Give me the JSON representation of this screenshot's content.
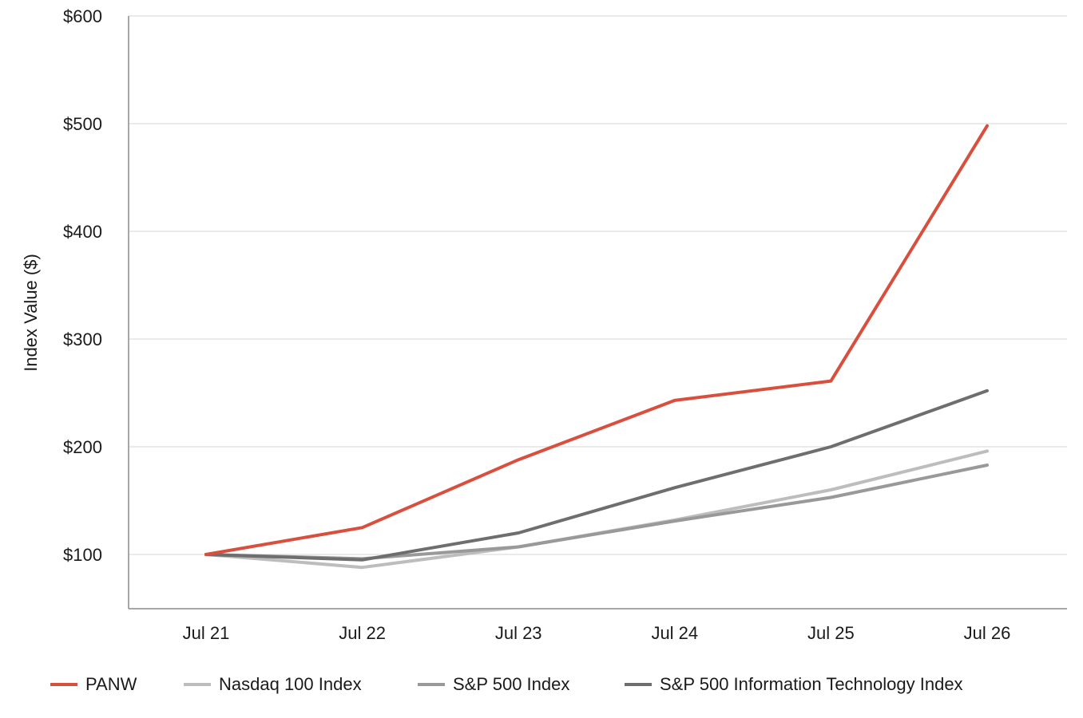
{
  "chart_data": {
    "type": "line",
    "title": "",
    "xlabel": "",
    "ylabel": "Index Value ($)",
    "categories": [
      "Jul 21",
      "Jul 22",
      "Jul 23",
      "Jul 24",
      "Jul 25",
      "Jul 26"
    ],
    "ylim": [
      50,
      600
    ],
    "yticks": [
      100,
      200,
      300,
      400,
      500,
      600
    ],
    "ytick_labels": [
      "$100",
      "$200",
      "$300",
      "$400",
      "$500",
      "$600"
    ],
    "grid": "horizontal",
    "legend_position": "bottom",
    "series": [
      {
        "name": "PANW",
        "color": "#d94f3d",
        "values": [
          100,
          125,
          188,
          243,
          261,
          498
        ]
      },
      {
        "name": "Nasdaq 100 Index",
        "color": "#bdbdbd",
        "values": [
          100,
          88,
          107,
          132,
          160,
          196
        ]
      },
      {
        "name": "S&P 500 Index",
        "color": "#999999",
        "values": [
          100,
          96,
          107,
          131,
          153,
          183
        ]
      },
      {
        "name": "S&P 500 Information Technology Index",
        "color": "#6e6e6e",
        "values": [
          100,
          95,
          120,
          162,
          200,
          252
        ]
      }
    ]
  }
}
